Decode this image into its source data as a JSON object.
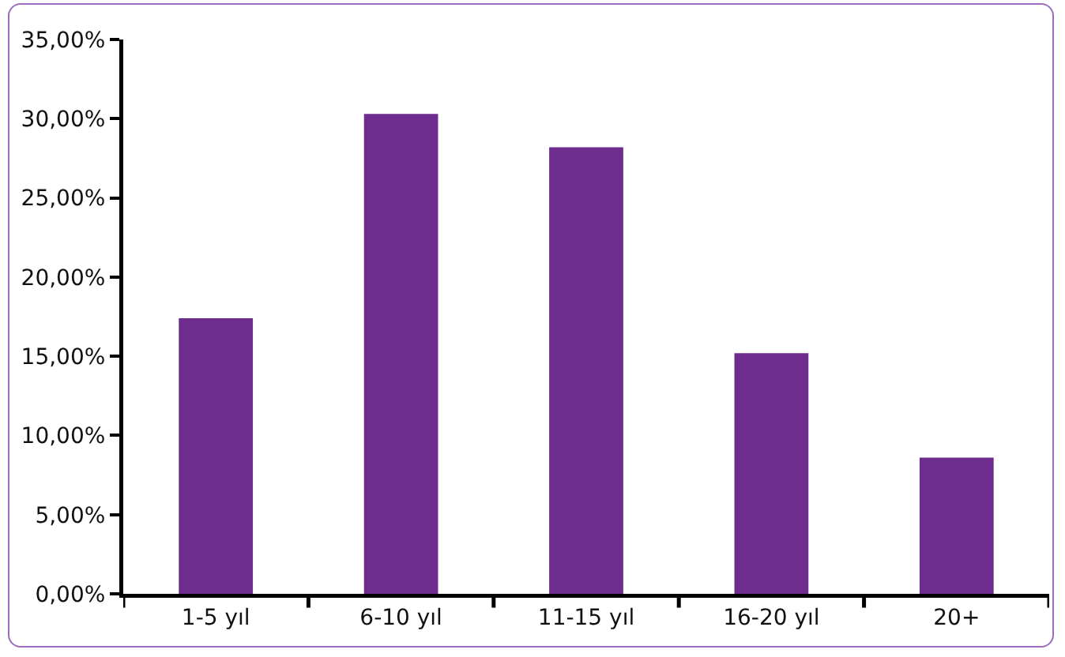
{
  "chart_data": {
    "type": "bar",
    "categories": [
      "1-5 yıl",
      "6-10 yıl",
      "11-15 yıl",
      "16-20 yıl",
      "20+"
    ],
    "values": [
      17.4,
      30.3,
      28.2,
      15.2,
      8.6
    ],
    "color": "#6d2c8e",
    "ylim": [
      0,
      35
    ],
    "yticks": [
      {
        "value": 0,
        "label": "0,00%"
      },
      {
        "value": 5,
        "label": "5,00%"
      },
      {
        "value": 10,
        "label": "10,00%"
      },
      {
        "value": 15,
        "label": "15,00%"
      },
      {
        "value": 20,
        "label": "20,00%"
      },
      {
        "value": 25,
        "label": "25,00%"
      },
      {
        "value": 30,
        "label": "30,00%"
      },
      {
        "value": 35,
        "label": "35,00%"
      }
    ],
    "grid": false
  }
}
